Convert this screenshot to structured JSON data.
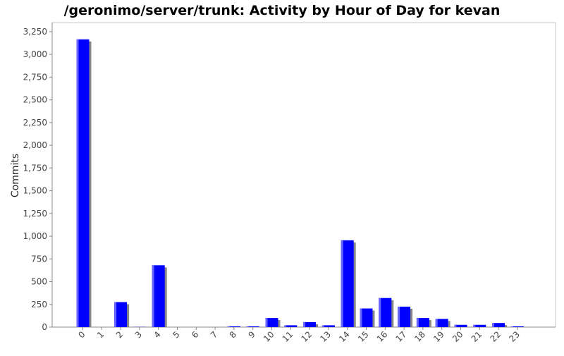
{
  "chart_data": {
    "type": "bar",
    "title": "/geronimo/server/trunk: Activity by Hour of Day for kevan",
    "xlabel": "",
    "ylabel": "Commits",
    "categories": [
      "0",
      "1",
      "2",
      "3",
      "4",
      "5",
      "6",
      "7",
      "8",
      "9",
      "10",
      "11",
      "12",
      "13",
      "14",
      "15",
      "16",
      "17",
      "18",
      "19",
      "20",
      "21",
      "22",
      "23"
    ],
    "values": [
      3165,
      0,
      275,
      2,
      680,
      0,
      0,
      0,
      8,
      8,
      100,
      20,
      55,
      20,
      955,
      205,
      320,
      225,
      100,
      90,
      25,
      25,
      45,
      8
    ],
    "ylim": [
      0,
      3350
    ],
    "yticks": [
      "0",
      "250",
      "500",
      "750",
      "1,000",
      "1,250",
      "1,500",
      "1,750",
      "2,000",
      "2,250",
      "2,500",
      "2,750",
      "3,000",
      "3,250"
    ],
    "grid": false,
    "legend": "none",
    "colors": {
      "bar": "#0000ff",
      "bar_highlight": "#6666ff",
      "shadow": "#888888",
      "axis": "#888888"
    }
  }
}
